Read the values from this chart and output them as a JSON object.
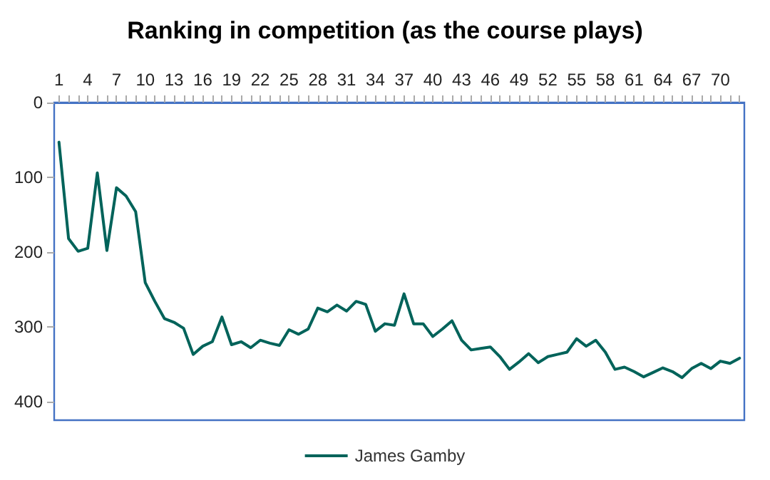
{
  "chart_data": {
    "type": "line",
    "title": "Ranking in competition (as the course plays)",
    "categories": [
      "1",
      null,
      null,
      "4",
      null,
      null,
      "7",
      null,
      null,
      "10",
      null,
      null,
      "13",
      null,
      null,
      "16",
      null,
      null,
      "19",
      null,
      null,
      "22",
      null,
      null,
      "25",
      null,
      null,
      "28",
      null,
      null,
      "31",
      null,
      null,
      "34",
      null,
      null,
      "37",
      null,
      null,
      "40",
      null,
      null,
      "43",
      null,
      null,
      "46",
      null,
      null,
      "49",
      null,
      null,
      "52",
      null,
      null,
      "55",
      null,
      null,
      "58",
      null,
      null,
      "61",
      null,
      null,
      "64",
      null,
      null,
      "67",
      null,
      null,
      "70",
      null,
      null
    ],
    "series": [
      {
        "name": "James Gamby",
        "color": "#00635a",
        "values": [
          53,
          182,
          199,
          195,
          94,
          198,
          114,
          125,
          146,
          241,
          266,
          289,
          294,
          302,
          337,
          326,
          320,
          287,
          324,
          320,
          328,
          318,
          322,
          325,
          304,
          310,
          303,
          275,
          280,
          271,
          279,
          266,
          270,
          306,
          296,
          298,
          256,
          296,
          296,
          313,
          303,
          292,
          318,
          331,
          329,
          327,
          340,
          357,
          347,
          336,
          348,
          340,
          337,
          334,
          316,
          326,
          318,
          334,
          357,
          354,
          360,
          367,
          361,
          355,
          360,
          368,
          356,
          349,
          356,
          346,
          349,
          342
        ]
      }
    ],
    "ylim": [
      425,
      0
    ],
    "yticks": [
      0,
      100,
      200,
      300,
      400
    ],
    "grid": false,
    "legend": "bottom",
    "marker": "none",
    "line_style": "solid"
  }
}
